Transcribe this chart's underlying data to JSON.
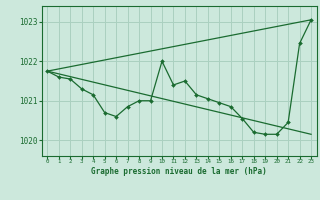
{
  "title": "Graphe pression niveau de la mer (hPa)",
  "background_color": "#cce8dc",
  "grid_color": "#aad0c0",
  "line_color": "#1a6b30",
  "x_ticks": [
    0,
    1,
    2,
    3,
    4,
    5,
    6,
    7,
    8,
    9,
    10,
    11,
    12,
    13,
    14,
    15,
    16,
    17,
    18,
    19,
    20,
    21,
    22,
    23
  ],
  "ylim": [
    1019.6,
    1023.4
  ],
  "yticks": [
    1020,
    1021,
    1022,
    1023
  ],
  "series1_x": [
    0,
    1,
    2,
    3,
    4,
    5,
    6,
    7,
    8,
    9,
    10,
    11,
    12,
    13,
    14,
    15,
    16,
    17,
    18,
    19,
    20,
    21,
    22,
    23
  ],
  "series1_y": [
    1021.75,
    1021.6,
    1021.55,
    1021.3,
    1021.15,
    1020.7,
    1020.6,
    1020.85,
    1021.0,
    1021.0,
    1022.0,
    1021.4,
    1021.5,
    1021.15,
    1021.05,
    1020.95,
    1020.85,
    1020.55,
    1020.2,
    1020.15,
    1020.15,
    1020.45,
    1022.45,
    1023.05
  ],
  "series2_x": [
    0,
    23
  ],
  "series2_y": [
    1021.75,
    1020.15
  ],
  "series3_x": [
    0,
    23
  ],
  "series3_y": [
    1021.75,
    1023.05
  ]
}
